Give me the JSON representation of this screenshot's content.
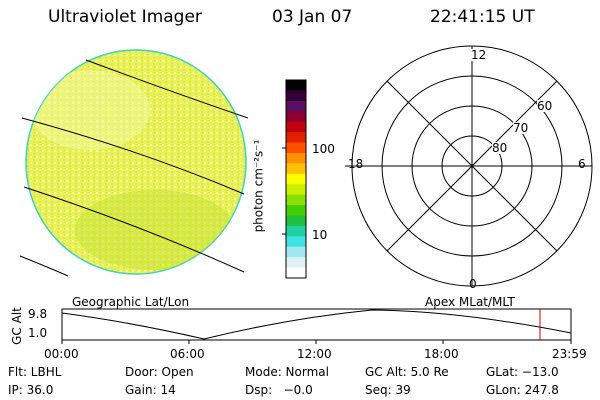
{
  "header": {
    "title": "Ultraviolet Imager",
    "date": "03 Jan 07",
    "time": "22:41:15 UT"
  },
  "colorbar": {
    "unit_label": "photon cm⁻²s⁻¹",
    "tick_labels": [
      "100",
      "10"
    ],
    "colors": [
      "#000000",
      "#330033",
      "#5a1060",
      "#8b0030",
      "#c00010",
      "#e02000",
      "#ff5000",
      "#ff9000",
      "#ffc000",
      "#ffff00",
      "#c8f000",
      "#88e000",
      "#44d000",
      "#20c040",
      "#20d0a0",
      "#40e0e0",
      "#a0e8f0",
      "#e0f0f8",
      "#ffffff"
    ]
  },
  "geo_panel": {
    "label": "Geographic Lat/Lon"
  },
  "polar_panel": {
    "label": "Apex MLat/MLT",
    "mlt_labels": {
      "top": "12",
      "left": "18",
      "right": "6",
      "bottom": "0"
    },
    "lat_labels": [
      "60",
      "70",
      "80"
    ]
  },
  "gc_alt_plot": {
    "ylabel": "GC Alt",
    "y_ticks": [
      "9.8",
      "1.0"
    ],
    "x_ticks": [
      "00:00",
      "06:00",
      "12:00",
      "18:00",
      "23:59"
    ],
    "marker_color": "#cc0000"
  },
  "footer": {
    "row1": [
      {
        "text": "Flt: LBHL"
      },
      {
        "text": "Door: Open"
      },
      {
        "text": "Mode: Normal"
      },
      {
        "text": "GC Alt: 5.0 Re"
      },
      {
        "text": "GLat: −13.0"
      }
    ],
    "row2": [
      {
        "text": "IP: 36.0"
      },
      {
        "text": "Gain: 14"
      },
      {
        "text": "Dsp:   −0.0"
      },
      {
        "text": "Seq: 39"
      },
      {
        "text": "GLon: 247.8"
      }
    ]
  }
}
